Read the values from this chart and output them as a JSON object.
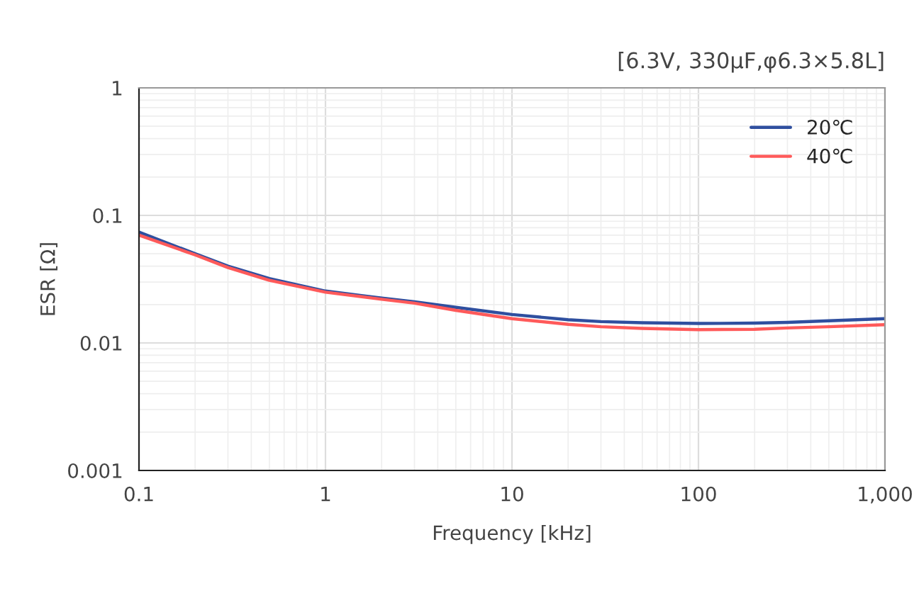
{
  "chart_data": {
    "type": "line",
    "title": "[6.3V, 330μF,φ6.3×5.8L]",
    "xlabel": "Frequency [kHz]",
    "ylabel": "ESR [Ω]",
    "x": [
      0.1,
      0.2,
      0.3,
      0.5,
      1,
      2,
      3,
      5,
      10,
      20,
      30,
      50,
      100,
      200,
      300,
      500,
      1000
    ],
    "series": [
      {
        "name": "20℃",
        "color": "#2f4f9f",
        "values": [
          0.074,
          0.05,
          0.04,
          0.032,
          0.0255,
          0.0225,
          0.021,
          0.019,
          0.0167,
          0.0152,
          0.0147,
          0.0144,
          0.0142,
          0.0143,
          0.0145,
          0.0149,
          0.0155
        ]
      },
      {
        "name": "40℃",
        "color": "#ff5a5a",
        "values": [
          0.07,
          0.049,
          0.039,
          0.031,
          0.025,
          0.022,
          0.0205,
          0.018,
          0.0155,
          0.014,
          0.0134,
          0.013,
          0.0127,
          0.0128,
          0.0131,
          0.0134,
          0.0139
        ]
      }
    ],
    "log": "xy",
    "xlim": [
      0.1,
      1000
    ],
    "ylim": [
      0.001,
      1
    ],
    "xticks": [
      0.1,
      1,
      10,
      100,
      {
        "value": 1000,
        "label": "1,000"
      }
    ],
    "yticks": [
      0.001,
      0.01,
      0.1,
      1
    ],
    "grid": true,
    "legend": "top right",
    "line_style": "solid",
    "marker": "none"
  }
}
